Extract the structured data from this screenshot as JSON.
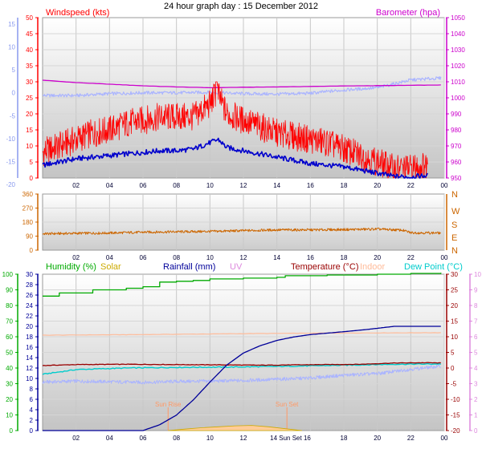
{
  "title": "24 hour graph day : 15 December 2012",
  "colors": {
    "windspeed": "#ff0000",
    "windgust_avg": "#0000cc",
    "barometer": "#cc00cc",
    "light_blue": "#aab4ff",
    "winddir": "#cc6600",
    "humidity": "#00aa00",
    "solar": "#ccaa00",
    "rainfall": "#000099",
    "uv": "#dd88dd",
    "temperature": "#990000",
    "indoor": "#ffbb99",
    "dewpoint": "#00cccc",
    "sun_marker": "#ff9966"
  },
  "chart_data": [
    {
      "type": "line",
      "name": "wind-barometer",
      "legend_left": "Windspeed (kts)",
      "legend_right": "Barometer (hpa)",
      "x_ticks": [
        "02",
        "04",
        "06",
        "08",
        "10",
        "12",
        "14",
        "16",
        "18",
        "20",
        "22",
        "00"
      ],
      "left_axis": {
        "ticks": [
          "50",
          "45",
          "40",
          "35",
          "30",
          "25",
          "20",
          "15",
          "10",
          "5",
          "0"
        ],
        "ylim": [
          0,
          50
        ]
      },
      "far_left_axis": {
        "ticks": [
          "15",
          "10",
          "5",
          "0",
          "-5",
          "-10",
          "-15",
          "-20"
        ],
        "ylim": [
          -20,
          15
        ]
      },
      "right_axis": {
        "ticks": [
          "1050",
          "1040",
          "1030",
          "1020",
          "1010",
          "1000",
          "990",
          "980",
          "970",
          "960",
          "950"
        ],
        "ylim": [
          950,
          1050
        ]
      },
      "series": [
        {
          "key": "windspeed",
          "values": [
            [
              0,
              8
            ],
            [
              1,
              10
            ],
            [
              2,
              12
            ],
            [
              3,
              14
            ],
            [
              4,
              15
            ],
            [
              5,
              17
            ],
            [
              6,
              18
            ],
            [
              7,
              19
            ],
            [
              8,
              19
            ],
            [
              9,
              19
            ],
            [
              10,
              23
            ],
            [
              10.4,
              27
            ],
            [
              11,
              20
            ],
            [
              12,
              18
            ],
            [
              13,
              16
            ],
            [
              14,
              14
            ],
            [
              15,
              13
            ],
            [
              16,
              12
            ],
            [
              17,
              11
            ],
            [
              18,
              9
            ],
            [
              19,
              7
            ],
            [
              20,
              5
            ],
            [
              21,
              3
            ],
            [
              22,
              3
            ],
            [
              23,
              4
            ]
          ]
        },
        {
          "key": "windgust_avg",
          "values": [
            [
              0,
              4
            ],
            [
              1,
              5
            ],
            [
              2,
              6
            ],
            [
              3,
              6.5
            ],
            [
              4,
              7
            ],
            [
              5,
              7.5
            ],
            [
              6,
              8
            ],
            [
              7,
              8.5
            ],
            [
              8,
              8.5
            ],
            [
              9,
              9
            ],
            [
              10,
              11
            ],
            [
              10.5,
              12
            ],
            [
              11,
              9.5
            ],
            [
              12,
              8.5
            ],
            [
              13,
              7.5
            ],
            [
              14,
              6.5
            ],
            [
              15,
              5.5
            ],
            [
              16,
              4.5
            ],
            [
              17,
              4
            ],
            [
              18,
              3.5
            ],
            [
              19,
              2.5
            ],
            [
              20,
              1.5
            ],
            [
              21,
              0.5
            ],
            [
              22,
              0.3
            ],
            [
              23,
              0.8
            ]
          ]
        },
        {
          "key": "barometer",
          "values": [
            [
              0,
              1011
            ],
            [
              2,
              1009.5
            ],
            [
              4,
              1008.5
            ],
            [
              6,
              1007.5
            ],
            [
              8,
              1006.8
            ],
            [
              10,
              1006.3
            ],
            [
              12,
              1006.6
            ],
            [
              14,
              1006.8
            ],
            [
              16,
              1007.1
            ],
            [
              18,
              1007.4
            ],
            [
              20,
              1007.6
            ],
            [
              22,
              1007.8
            ],
            [
              23.8,
              1008
            ]
          ]
        },
        {
          "key": "light_blue",
          "values": [
            [
              0,
              -2
            ],
            [
              2,
              -2
            ],
            [
              4,
              -1.6
            ],
            [
              6,
              -1.4
            ],
            [
              8,
              -1.4
            ],
            [
              10,
              -1.3
            ],
            [
              12,
              -1.6
            ],
            [
              14,
              -1.7
            ],
            [
              16,
              -1.5
            ],
            [
              18,
              -0.8
            ],
            [
              20,
              -0.3
            ],
            [
              22,
              1.4
            ],
            [
              23.8,
              1.8
            ]
          ]
        }
      ]
    },
    {
      "type": "line",
      "name": "wind-direction",
      "x_ticks": [
        "02",
        "04",
        "06",
        "08",
        "10",
        "12",
        "14",
        "16",
        "18",
        "20",
        "22",
        "00"
      ],
      "left_axis": {
        "ticks": [
          "360",
          "270",
          "180",
          "90",
          "0"
        ],
        "ylim": [
          0,
          360
        ]
      },
      "right_axis": {
        "ticks": [
          "N",
          "W",
          "S",
          "E",
          "N"
        ]
      },
      "series": [
        {
          "key": "winddir",
          "values": [
            [
              0,
              105
            ],
            [
              2,
              108
            ],
            [
              4,
              110
            ],
            [
              6,
              115
            ],
            [
              8,
              118
            ],
            [
              10,
              120
            ],
            [
              12,
              125
            ],
            [
              14,
              130
            ],
            [
              16,
              130
            ],
            [
              18,
              132
            ],
            [
              20,
              135
            ],
            [
              21.5,
              128
            ],
            [
              22,
              112
            ],
            [
              23.8,
              110
            ]
          ]
        }
      ]
    },
    {
      "type": "line",
      "name": "humidity-temperature",
      "legends": [
        "Humidity (%)",
        "Solar",
        "Rainfall (mm)",
        "UV",
        "Temperature (°C)",
        "Indoor",
        "Dew Point (°C)"
      ],
      "annotations": {
        "sunrise": "Sun Rise",
        "sunset": "Sun Set"
      },
      "x_ticks": [
        "02",
        "04",
        "06",
        "08",
        "10",
        "12",
        "14",
        "16",
        "18",
        "20",
        "22",
        "00"
      ],
      "x_tick_14_16_label": "14 Sun Set 16",
      "far_left_axis": {
        "ticks": [
          "100",
          "90",
          "80",
          "70",
          "60",
          "50",
          "40",
          "30",
          "20",
          "10",
          "0"
        ],
        "ylim": [
          0,
          100
        ]
      },
      "left_axis": {
        "ticks": [
          "30",
          "28",
          "26",
          "24",
          "22",
          "20",
          "18",
          "16",
          "14",
          "12",
          "10",
          "8",
          "6",
          "4",
          "2",
          "0"
        ],
        "ylim": [
          0,
          30
        ]
      },
      "right_axis": {
        "ticks": [
          "30",
          "25",
          "20",
          "15",
          "10",
          "5",
          "0",
          "-5",
          "-10",
          "-15",
          "-20"
        ],
        "ylim": [
          -20,
          30
        ]
      },
      "far_right_axis": {
        "ticks": [
          "10",
          "9",
          "8",
          "7",
          "6",
          "5",
          "4",
          "3",
          "2",
          "1",
          "0"
        ],
        "ylim": [
          0,
          10
        ]
      },
      "series": [
        {
          "key": "humidity",
          "values": [
            [
              0,
              86
            ],
            [
              1,
              88
            ],
            [
              3,
              90
            ],
            [
              5,
              91
            ],
            [
              6,
              92
            ],
            [
              7,
              95
            ],
            [
              8,
              95.5
            ],
            [
              9,
              96
            ],
            [
              10,
              97
            ],
            [
              12,
              97.5
            ],
            [
              14,
              98
            ],
            [
              14.5,
              99
            ],
            [
              17,
              99.5
            ],
            [
              20,
              100
            ],
            [
              22,
              100.5
            ],
            [
              23.8,
              101
            ]
          ]
        },
        {
          "key": "rainfall",
          "values": [
            [
              0,
              0
            ],
            [
              6,
              0
            ],
            [
              7,
              1.2
            ],
            [
              8,
              3.2
            ],
            [
              9,
              6.3
            ],
            [
              10,
              10
            ],
            [
              11,
              13.5
            ],
            [
              12,
              16
            ],
            [
              13,
              17.5
            ],
            [
              14,
              18.6
            ],
            [
              15,
              19.3
            ],
            [
              16,
              19.8
            ],
            [
              17,
              20.1
            ],
            [
              18,
              20.4
            ],
            [
              19.5,
              20.9
            ],
            [
              21,
              21.5
            ],
            [
              22,
              21.5
            ],
            [
              23.8,
              21.5
            ]
          ]
        },
        {
          "key": "temperature",
          "values": [
            [
              0,
              0.8
            ],
            [
              2,
              1.1
            ],
            [
              5,
              1.2
            ],
            [
              8,
              1.1
            ],
            [
              11,
              1.0
            ],
            [
              13,
              0.9
            ],
            [
              15,
              1.0
            ],
            [
              17,
              1.1
            ],
            [
              19,
              1.2
            ],
            [
              21,
              1.6
            ],
            [
              23,
              1.7
            ],
            [
              23.8,
              1.6
            ]
          ]
        },
        {
          "key": "dewpoint",
          "values": [
            [
              0,
              -2
            ],
            [
              2,
              -0.5
            ],
            [
              5,
              0
            ],
            [
              8,
              0.2
            ],
            [
              11,
              0.3
            ],
            [
              14,
              0.5
            ],
            [
              17,
              0.8
            ],
            [
              19,
              1
            ],
            [
              21,
              1.2
            ],
            [
              23.8,
              1.3
            ]
          ]
        },
        {
          "key": "indoor",
          "values": [
            [
              0,
              10.5
            ],
            [
              6,
              10.7
            ],
            [
              12,
              11
            ],
            [
              18,
              11.2
            ],
            [
              23.8,
              11.3
            ]
          ]
        },
        {
          "key": "light_blue",
          "values": [
            [
              0,
              -4.5
            ],
            [
              2,
              -4.2
            ],
            [
              4,
              -4.4
            ],
            [
              6,
              -4.6
            ],
            [
              8,
              -4.3
            ],
            [
              10,
              -4.2
            ],
            [
              12,
              -4.0
            ],
            [
              14,
              -3.6
            ],
            [
              16,
              -3.2
            ],
            [
              18,
              -2.3
            ],
            [
              20,
              -1.8
            ],
            [
              22,
              -0.4
            ],
            [
              23.8,
              0.6
            ]
          ]
        },
        {
          "key": "solar",
          "values": [
            [
              7.5,
              0
            ],
            [
              8.5,
              0.3
            ],
            [
              9.5,
              0.6
            ],
            [
              10.5,
              0.8
            ],
            [
              11.5,
              1.0
            ],
            [
              12.5,
              1.1
            ],
            [
              13.5,
              0.8
            ],
            [
              14.5,
              0.4
            ],
            [
              15.5,
              0
            ]
          ]
        }
      ]
    }
  ]
}
